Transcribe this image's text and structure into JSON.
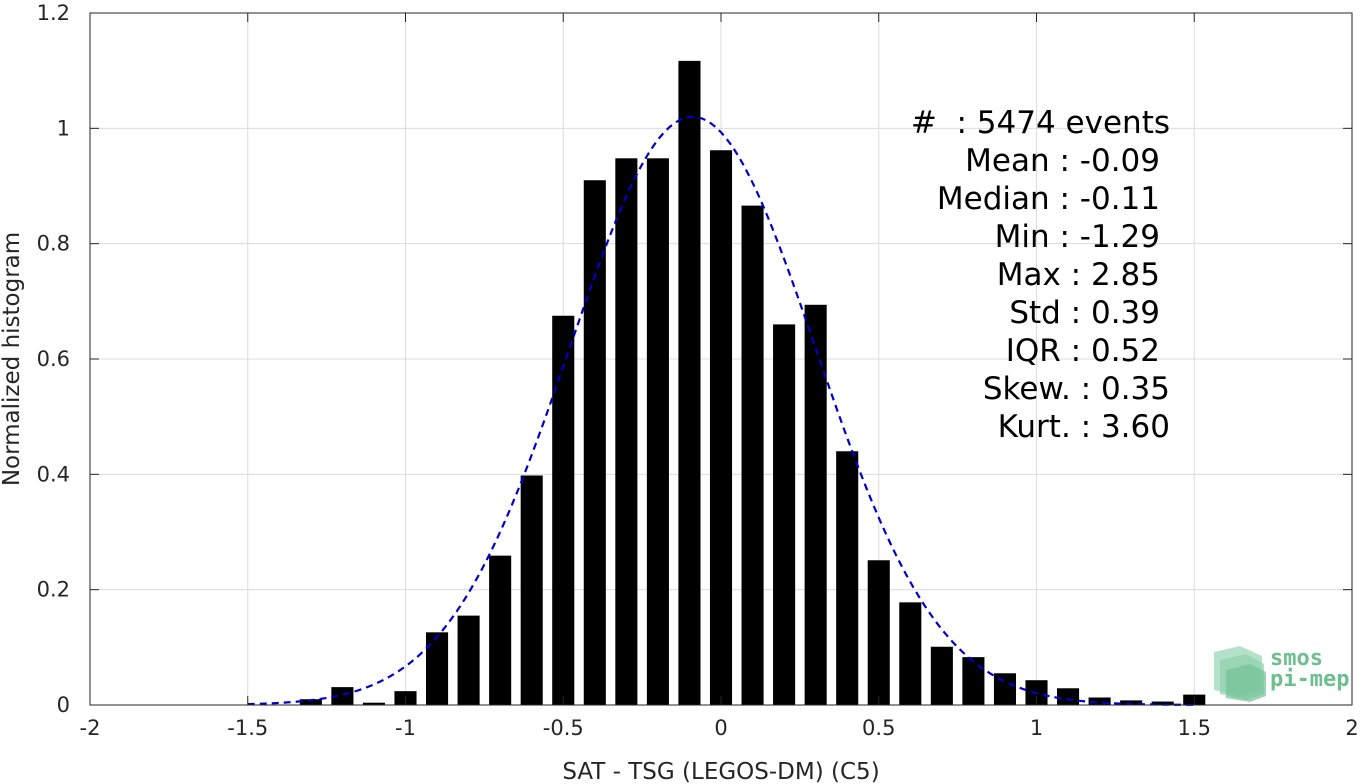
{
  "chart_data": {
    "type": "bar",
    "xlabel": "SAT - TSG (LEGOS-DM) (C5)",
    "ylabel": "Normalized histogram",
    "xlim": [
      -2,
      2
    ],
    "ylim": [
      0,
      1.2
    ],
    "xticks": [
      "-2",
      "-1.5",
      "-1",
      "-0.5",
      "0",
      "0.5",
      "1",
      "1.5",
      "2"
    ],
    "yticks": [
      "0",
      "0.2",
      "0.4",
      "0.6",
      "0.8",
      "1",
      "1.2"
    ],
    "grid": true,
    "bar_width": 0.07,
    "bar_color": "#000000",
    "bars": [
      {
        "x": -1.3,
        "y": 0.01
      },
      {
        "x": -1.2,
        "y": 0.031
      },
      {
        "x": -1.1,
        "y": 0.004
      },
      {
        "x": -1.0,
        "y": 0.024
      },
      {
        "x": -0.9,
        "y": 0.126
      },
      {
        "x": -0.8,
        "y": 0.155
      },
      {
        "x": -0.7,
        "y": 0.259
      },
      {
        "x": -0.6,
        "y": 0.398
      },
      {
        "x": -0.5,
        "y": 0.675
      },
      {
        "x": -0.4,
        "y": 0.91
      },
      {
        "x": -0.3,
        "y": 0.948
      },
      {
        "x": -0.2,
        "y": 0.948
      },
      {
        "x": -0.1,
        "y": 1.117
      },
      {
        "x": 0.0,
        "y": 0.962
      },
      {
        "x": 0.1,
        "y": 0.866
      },
      {
        "x": 0.2,
        "y": 0.66
      },
      {
        "x": 0.3,
        "y": 0.694
      },
      {
        "x": 0.4,
        "y": 0.44
      },
      {
        "x": 0.5,
        "y": 0.251
      },
      {
        "x": 0.6,
        "y": 0.178
      },
      {
        "x": 0.7,
        "y": 0.101
      },
      {
        "x": 0.8,
        "y": 0.083
      },
      {
        "x": 0.9,
        "y": 0.055
      },
      {
        "x": 1.0,
        "y": 0.043
      },
      {
        "x": 1.1,
        "y": 0.029
      },
      {
        "x": 1.2,
        "y": 0.013
      },
      {
        "x": 1.3,
        "y": 0.008
      },
      {
        "x": 1.4,
        "y": 0.006
      },
      {
        "x": 1.5,
        "y": 0.018
      }
    ],
    "fit": {
      "type": "gaussian",
      "mean": -0.09,
      "std": 0.39,
      "peak": 1.02,
      "x_range": [
        -1.5,
        1.5
      ],
      "color": "#0000cc",
      "style": "dashed"
    },
    "stats_lines": [
      "#  : 5474 events",
      "Mean : -0.09",
      "Median : -0.11",
      "Min : -1.29",
      "Max : 2.85",
      "Std : 0.39",
      "IQR : 0.52",
      "Skew. : 0.35",
      "Kurt. : 3.60"
    ]
  },
  "logo": {
    "line1": "smos",
    "line2": "pi-mep",
    "color": "#6dbf8e"
  }
}
